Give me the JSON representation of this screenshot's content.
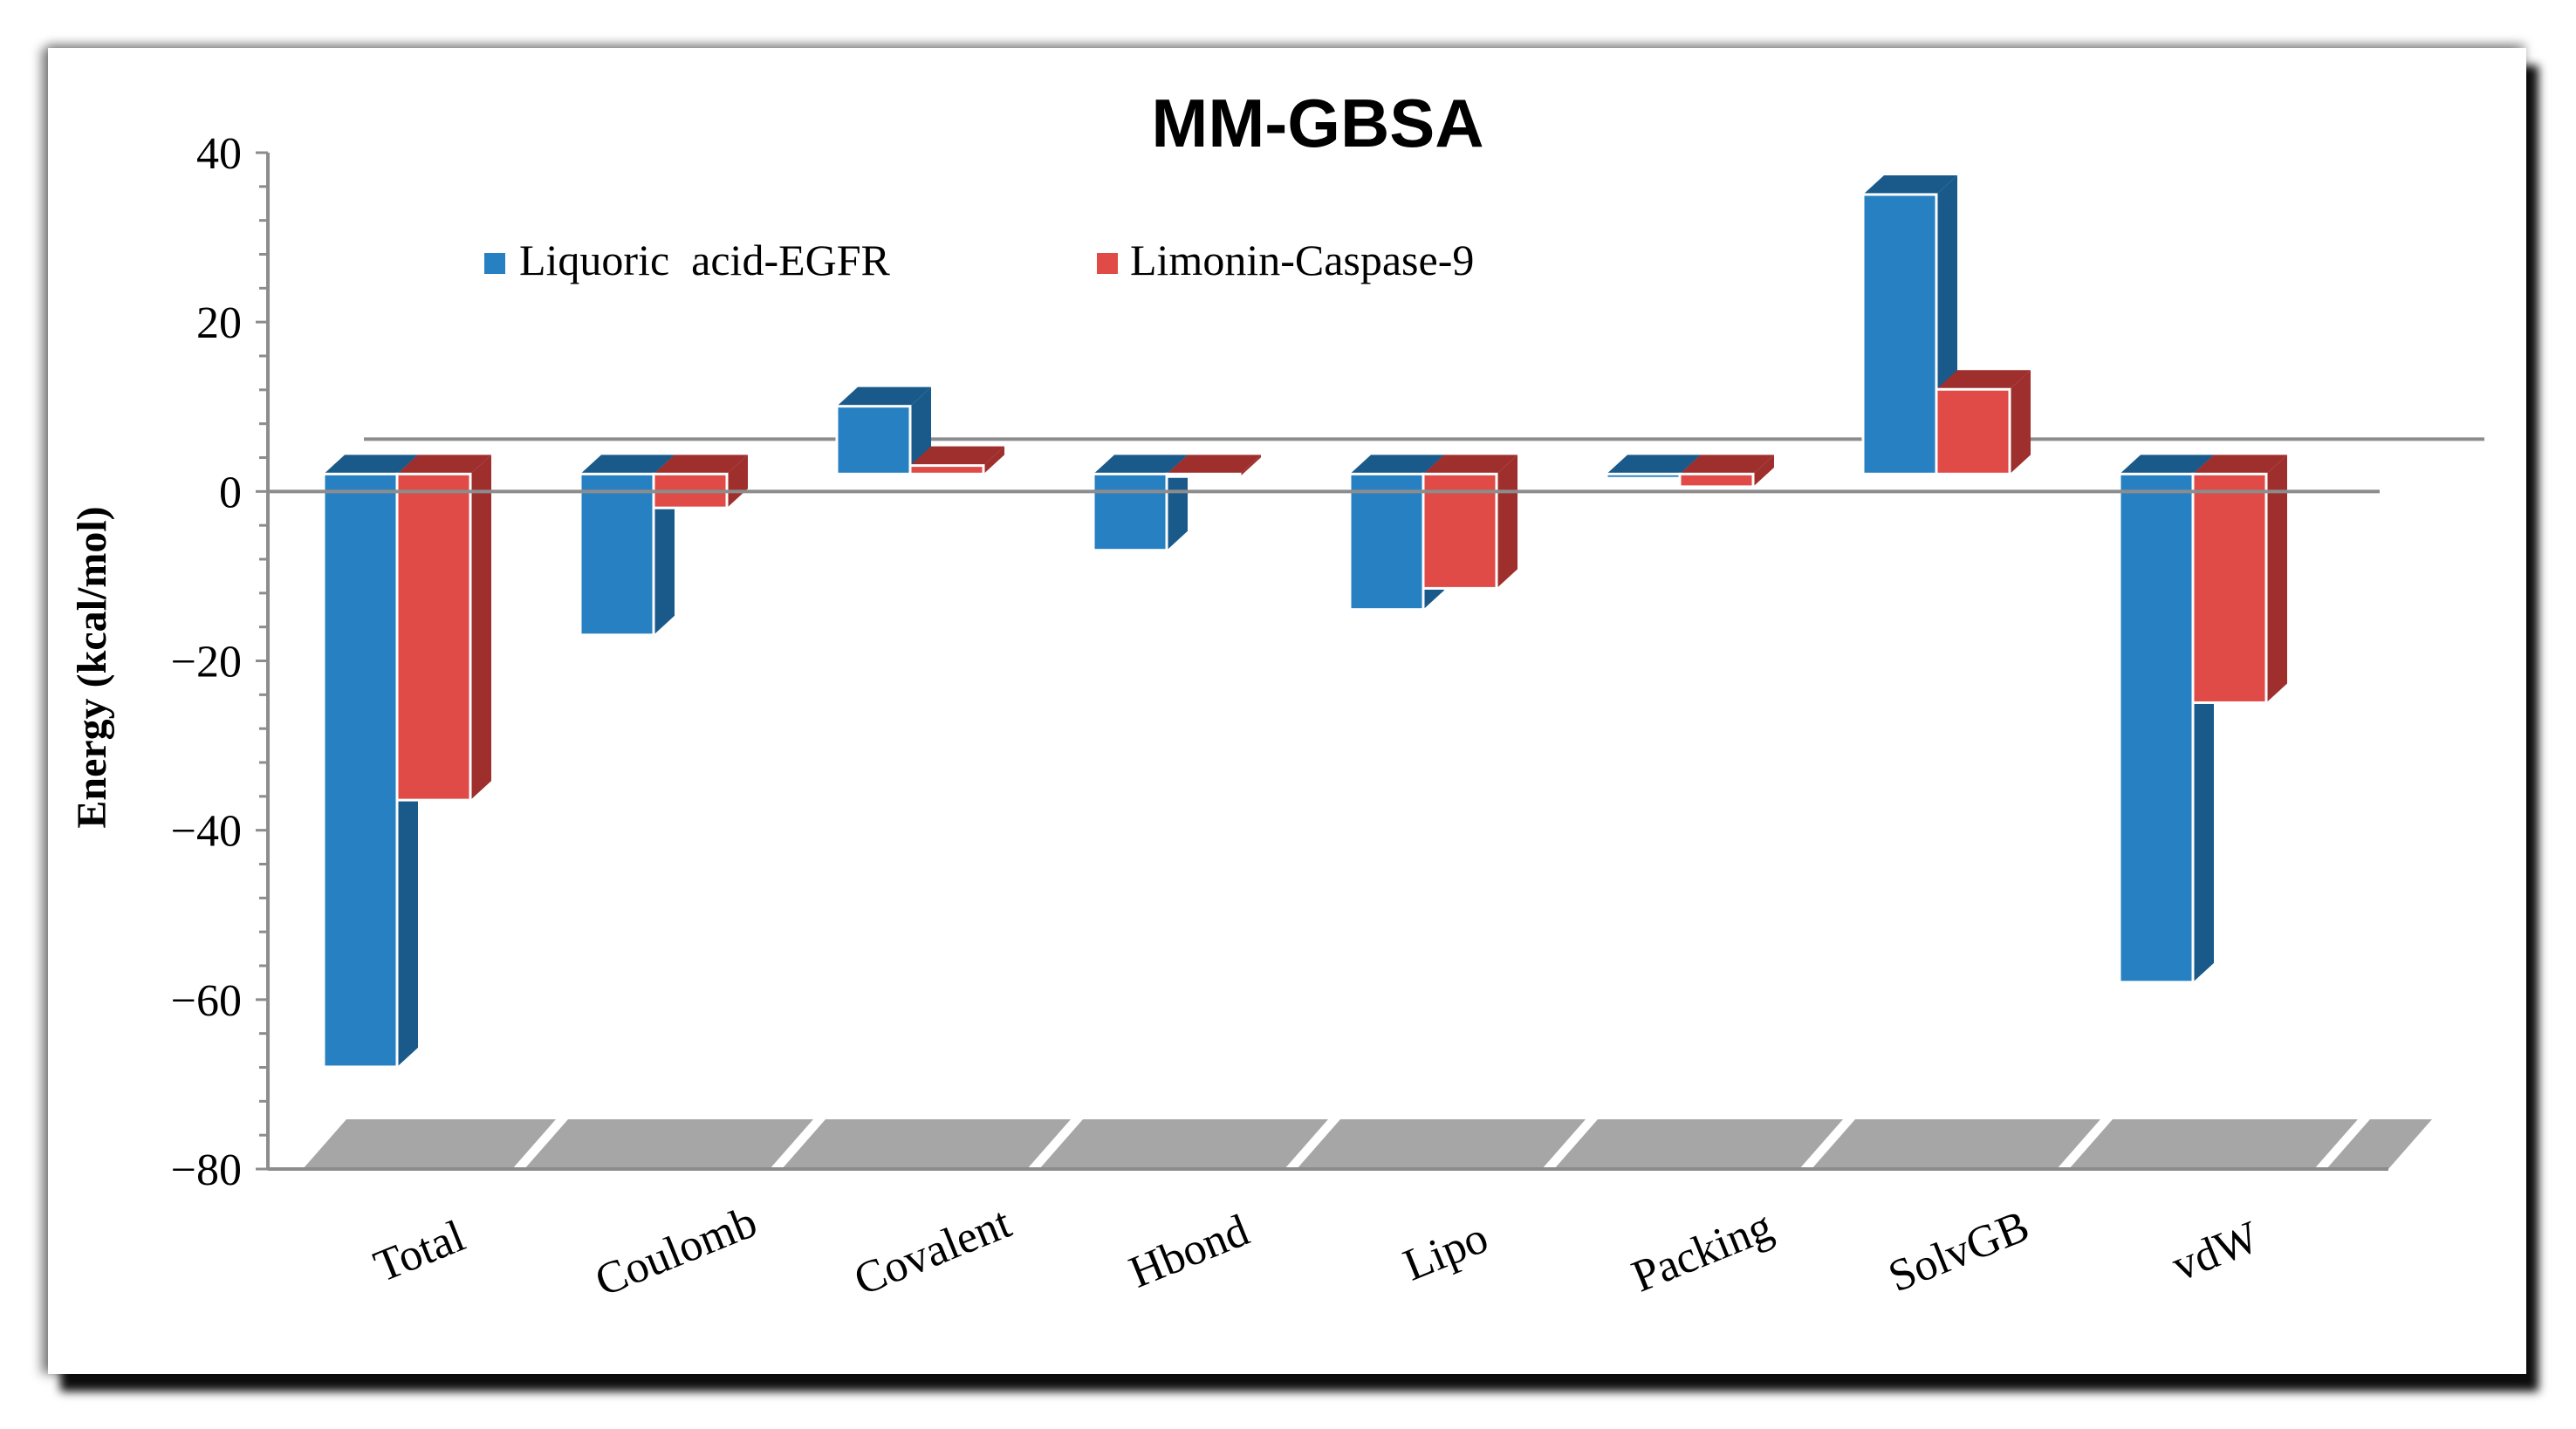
{
  "chart_data": {
    "type": "bar",
    "title": "MM-GBSA",
    "xlabel": "",
    "ylabel": "Energy (kcal/mol)",
    "ylim": [
      -80,
      40
    ],
    "yticks": [
      40,
      20,
      0,
      -20,
      -40,
      -60,
      -80
    ],
    "ytick_labels": [
      "40",
      "20",
      "0",
      "−20",
      "−40",
      "−60",
      "−80"
    ],
    "categories": [
      "Total",
      "Coulomb",
      "Covalent",
      "Hbond",
      "Lipo",
      "Packing",
      "SolvGB",
      "vdW"
    ],
    "series": [
      {
        "name": "Liquoric  acid-EGFR",
        "color": "#2680c2",
        "values": [
          -70,
          -19,
          8,
          -9,
          -16,
          -0.5,
          33,
          -60
        ]
      },
      {
        "name": "Limonin-Caspase-9",
        "color": "#e04a47",
        "values": [
          -38.5,
          -4,
          1,
          -0.3,
          -13.5,
          -1.5,
          10,
          -27
        ]
      }
    ],
    "legend_position": "top"
  },
  "colors": {
    "series_1_side": "#1a5a8a",
    "series_2_side": "#9e2f2d",
    "floor": "#a6a6a6",
    "axis": "#8c8c8c"
  }
}
